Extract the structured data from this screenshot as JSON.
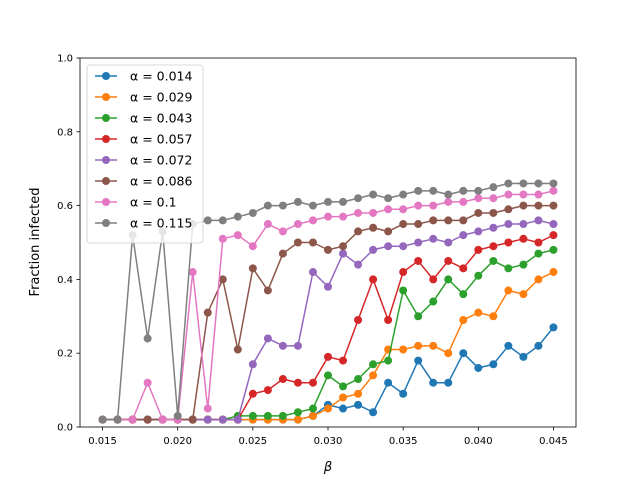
{
  "chart_data": {
    "type": "line",
    "xlabel": "β",
    "ylabel": "Fraction infected",
    "xlim": [
      0.0135,
      0.0465
    ],
    "ylim": [
      0,
      1
    ],
    "xticks": [
      0.015,
      0.02,
      0.025,
      0.03,
      0.035,
      0.04,
      0.045
    ],
    "xtick_labels": [
      "0.015",
      "0.020",
      "0.025",
      "0.030",
      "0.035",
      "0.040",
      "0.045"
    ],
    "yticks": [
      0,
      0.2,
      0.4,
      0.6,
      0.8,
      1.0
    ],
    "ytick_labels": [
      "0.0",
      "0.2",
      "0.4",
      "0.6",
      "0.8",
      "1.0"
    ],
    "grid": false,
    "legend_position": "top-left",
    "x": [
      0.015,
      0.016,
      0.017,
      0.018,
      0.019,
      0.02,
      0.021,
      0.022,
      0.023,
      0.024,
      0.025,
      0.026,
      0.027,
      0.028,
      0.029,
      0.03,
      0.031,
      0.032,
      0.033,
      0.034,
      0.035,
      0.036,
      0.037,
      0.038,
      0.039,
      0.04,
      0.041,
      0.042,
      0.043,
      0.044,
      0.045
    ],
    "series": [
      {
        "name": "α = 0.014",
        "color": "#1f77b4",
        "values": [
          0.02,
          0.02,
          0.02,
          0.02,
          0.02,
          0.02,
          0.02,
          0.02,
          0.02,
          0.02,
          0.02,
          0.02,
          0.02,
          0.02,
          0.03,
          0.06,
          0.05,
          0.06,
          0.04,
          0.12,
          0.09,
          0.18,
          0.12,
          0.12,
          0.2,
          0.16,
          0.17,
          0.22,
          0.19,
          0.22,
          0.27
        ]
      },
      {
        "name": "α = 0.029",
        "color": "#ff7f0e",
        "values": [
          0.02,
          0.02,
          0.02,
          0.02,
          0.02,
          0.02,
          0.02,
          0.02,
          0.02,
          0.02,
          0.02,
          0.02,
          0.02,
          0.02,
          0.03,
          0.05,
          0.08,
          0.09,
          0.14,
          0.21,
          0.21,
          0.22,
          0.22,
          0.2,
          0.29,
          0.31,
          0.3,
          0.37,
          0.36,
          0.4,
          0.42
        ]
      },
      {
        "name": "α = 0.043",
        "color": "#2ca02c",
        "values": [
          0.02,
          0.02,
          0.02,
          0.02,
          0.02,
          0.02,
          0.02,
          0.02,
          0.02,
          0.03,
          0.03,
          0.03,
          0.03,
          0.04,
          0.05,
          0.14,
          0.11,
          0.13,
          0.17,
          0.18,
          0.37,
          0.3,
          0.34,
          0.4,
          0.36,
          0.41,
          0.45,
          0.43,
          0.44,
          0.47,
          0.48
        ]
      },
      {
        "name": "α = 0.057",
        "color": "#d62728",
        "values": [
          0.02,
          0.02,
          0.02,
          0.02,
          0.02,
          0.02,
          0.02,
          0.02,
          0.02,
          0.02,
          0.09,
          0.1,
          0.13,
          0.12,
          0.12,
          0.19,
          0.18,
          0.29,
          0.4,
          0.29,
          0.42,
          0.45,
          0.4,
          0.45,
          0.43,
          0.48,
          0.49,
          0.5,
          0.51,
          0.5,
          0.52
        ]
      },
      {
        "name": "α = 0.072",
        "color": "#9467bd",
        "values": [
          0.02,
          0.02,
          0.02,
          0.02,
          0.02,
          0.02,
          0.02,
          0.02,
          0.02,
          0.02,
          0.17,
          0.24,
          0.22,
          0.22,
          0.42,
          0.38,
          0.47,
          0.44,
          0.48,
          0.49,
          0.49,
          0.5,
          0.51,
          0.5,
          0.52,
          0.53,
          0.54,
          0.55,
          0.55,
          0.56,
          0.55
        ]
      },
      {
        "name": "α = 0.086",
        "color": "#8c564b",
        "values": [
          0.02,
          0.02,
          0.02,
          0.02,
          0.02,
          0.02,
          0.02,
          0.31,
          0.4,
          0.21,
          0.43,
          0.37,
          0.47,
          0.5,
          0.5,
          0.48,
          0.49,
          0.53,
          0.54,
          0.53,
          0.55,
          0.55,
          0.56,
          0.56,
          0.56,
          0.58,
          0.58,
          0.59,
          0.6,
          0.6,
          0.6
        ]
      },
      {
        "name": "α = 0.1",
        "color": "#e377c2",
        "values": [
          0.02,
          0.02,
          0.02,
          0.12,
          0.02,
          0.02,
          0.42,
          0.05,
          0.51,
          0.52,
          0.49,
          0.55,
          0.53,
          0.55,
          0.56,
          0.57,
          0.57,
          0.58,
          0.58,
          0.59,
          0.59,
          0.6,
          0.6,
          0.61,
          0.61,
          0.62,
          0.62,
          0.63,
          0.63,
          0.63,
          0.64
        ]
      },
      {
        "name": "α = 0.115",
        "color": "#7f7f7f",
        "values": [
          0.02,
          0.02,
          0.52,
          0.24,
          0.53,
          0.03,
          0.55,
          0.56,
          0.56,
          0.57,
          0.58,
          0.6,
          0.6,
          0.61,
          0.6,
          0.61,
          0.61,
          0.62,
          0.63,
          0.62,
          0.63,
          0.64,
          0.64,
          0.63,
          0.64,
          0.64,
          0.65,
          0.66,
          0.66,
          0.66,
          0.66
        ]
      }
    ]
  }
}
